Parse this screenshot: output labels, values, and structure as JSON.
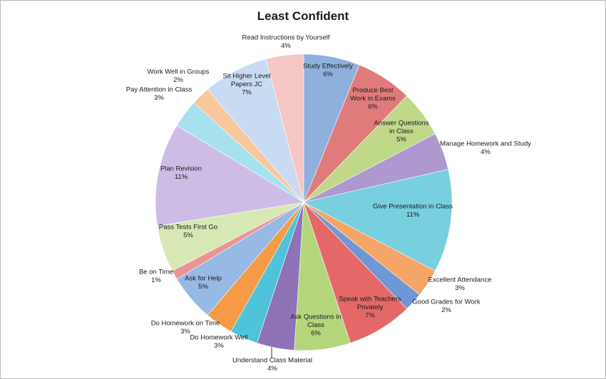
{
  "chart_data": {
    "type": "pie",
    "title": "Least Confident",
    "slices": [
      {
        "label": "Study Effectively",
        "value": 6,
        "percent": "6%",
        "color": "#8fb0dc"
      },
      {
        "label": "Produce Best Work in Exams",
        "value": 6,
        "percent": "6%",
        "color": "#e07b7b"
      },
      {
        "label": "Answer Questions in Class",
        "value": 5,
        "percent": "5%",
        "color": "#c0d88a"
      },
      {
        "label": "Manage Homework and Study",
        "value": 4,
        "percent": "4%",
        "color": "#ad98cf"
      },
      {
        "label": "Give Presentation in Class",
        "value": 11,
        "percent": "11%",
        "color": "#78cfe0"
      },
      {
        "label": "Excellent Attendance",
        "value": 3,
        "percent": "3%",
        "color": "#f5a565"
      },
      {
        "label": "Good Grades for Work",
        "value": 2,
        "percent": "2%",
        "color": "#6f97d6"
      },
      {
        "label": "Speak with Teachers Privately",
        "value": 7,
        "percent": "7%",
        "color": "#e46868"
      },
      {
        "label": "Ask Questions in Class",
        "value": 6,
        "percent": "6%",
        "color": "#b5d67a"
      },
      {
        "label": "Understand Class Material",
        "value": 4,
        "percent": "4%",
        "color": "#8f72b8"
      },
      {
        "label": "Do Homework Well",
        "value": 3,
        "percent": "3%",
        "color": "#4fc3d9"
      },
      {
        "label": "Do Homework on Time",
        "value": 3,
        "percent": "3%",
        "color": "#f59a45"
      },
      {
        "label": "Ask for Help",
        "value": 5,
        "percent": "5%",
        "color": "#97b9e6"
      },
      {
        "label": "Be on Time",
        "value": 1,
        "percent": "1%",
        "color": "#ea9595"
      },
      {
        "label": "Pass Tests First Go",
        "value": 5,
        "percent": "5%",
        "color": "#d7e8b4"
      },
      {
        "label": "Plan Revision",
        "value": 11,
        "percent": "11%",
        "color": "#cdbde6"
      },
      {
        "label": "Pay Attention in Class",
        "value": 3,
        "percent": "3%",
        "color": "#a7e1ee"
      },
      {
        "label": "Work Well in Groups",
        "value": 2,
        "percent": "2%",
        "color": "#f8c79c"
      },
      {
        "label": "Sit Higher Level Papers JC",
        "value": 7,
        "percent": "7%",
        "color": "#c9dbf3"
      },
      {
        "label": "Read Instructions by Yourself",
        "value": 4,
        "percent": "4%",
        "color": "#f5c6c6"
      }
    ],
    "legend": "none"
  }
}
